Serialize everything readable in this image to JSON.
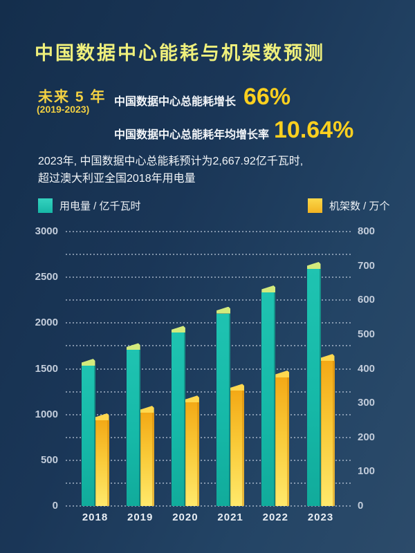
{
  "title": "中国数据中心能耗与机架数预测",
  "highlight": {
    "period_label": "未来 5 年",
    "period_range": "(2019-2023)",
    "stat1_label": "中国数据中心总能耗增长",
    "stat1_value": "66%",
    "stat2_label": "中国数据中心总能耗年均增长率",
    "stat2_value": "10.64%"
  },
  "note": {
    "line1": "2023年, 中国数据中心总能耗预计为2,667.92亿千瓦时,",
    "line2": "超过澳大利亚全国2018年用电量"
  },
  "legend": {
    "left": {
      "label": "用电量 / 亿千瓦时",
      "color": "#17b7a6"
    },
    "right": {
      "label": "机架数 / 万个",
      "color": "#f9c937"
    }
  },
  "colors": {
    "background_top": "#142e4c",
    "background_bottom": "#2c4b6a",
    "title_yellow": "#eff07c",
    "accent_gold": "#fdd01f",
    "teal_bar": "#16b9a8",
    "teal_bar_cap": "#d3ea7c",
    "yellow_bar": "#f9c937",
    "yellow_bar_cap": "#ffd84f",
    "axis_text": "#c3cddb",
    "gridline": "rgba(214,224,238,0.55)"
  },
  "chart_data": {
    "type": "bar",
    "title": "中国数据中心能耗与机架数预测 (2018-2023)",
    "categories": [
      "2018",
      "2019",
      "2020",
      "2021",
      "2022",
      "2023"
    ],
    "series": [
      {
        "name": "用电量 / 亿千瓦时",
        "axis": "left",
        "color": "#16b9a8",
        "values": [
          1608.89,
          1780,
          1969,
          2179,
          2411,
          2667.92
        ]
      },
      {
        "name": "机架数 / 万个",
        "axis": "right",
        "color": "#f9c937",
        "values": [
          270,
          292,
          322,
          356,
          395,
          443
        ]
      }
    ],
    "left_axis": {
      "min": 0,
      "max": 3000,
      "tick_step": 500,
      "ticks": [
        3000,
        2500,
        2000,
        1500,
        1000,
        500,
        0
      ],
      "gridline_step": 250
    },
    "right_axis": {
      "min": 0,
      "max": 800,
      "tick_step": 100,
      "ticks": [
        800,
        700,
        600,
        500,
        400,
        300,
        200,
        100,
        0
      ]
    },
    "grid": "dotted horizontal lines, step 250 on left axis",
    "legend_position": "top"
  }
}
